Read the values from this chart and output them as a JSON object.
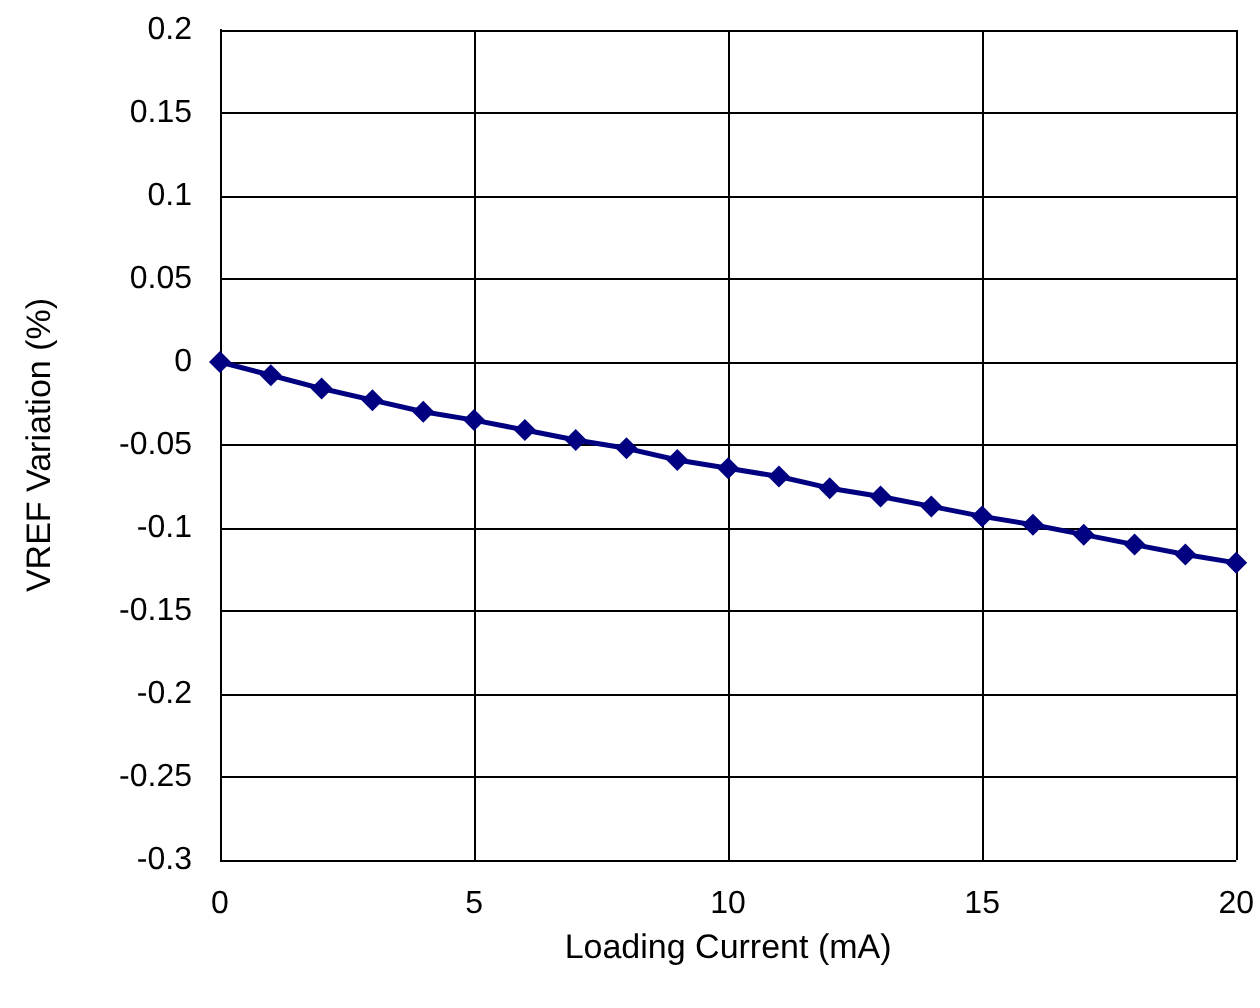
{
  "chart_data": {
    "type": "line",
    "xlabel": "Loading Current (mA)",
    "ylabel": "VREF Variation (%)",
    "x": [
      0,
      1,
      2,
      3,
      4,
      5,
      6,
      7,
      8,
      9,
      10,
      11,
      12,
      13,
      14,
      15,
      16,
      17,
      18,
      19,
      20
    ],
    "series": [
      {
        "color": "#000080",
        "values": [
          0,
          -0.008,
          -0.016,
          -0.023,
          -0.03,
          -0.035,
          -0.041,
          -0.047,
          -0.052,
          -0.059,
          -0.064,
          -0.069,
          -0.076,
          -0.081,
          -0.087,
          -0.093,
          -0.098,
          -0.104,
          -0.11,
          -0.116,
          -0.121
        ]
      }
    ],
    "xlim": [
      0,
      20
    ],
    "xticks": [
      0,
      5,
      10,
      15,
      20
    ],
    "ylim": [
      -0.3,
      0.2
    ],
    "yticks": [
      -0.3,
      -0.25,
      -0.2,
      -0.15,
      -0.1,
      -0.05,
      0,
      0.05,
      0.1,
      0.15,
      0.2
    ],
    "grid": true,
    "marker": "diamond",
    "line_style": "solid"
  }
}
